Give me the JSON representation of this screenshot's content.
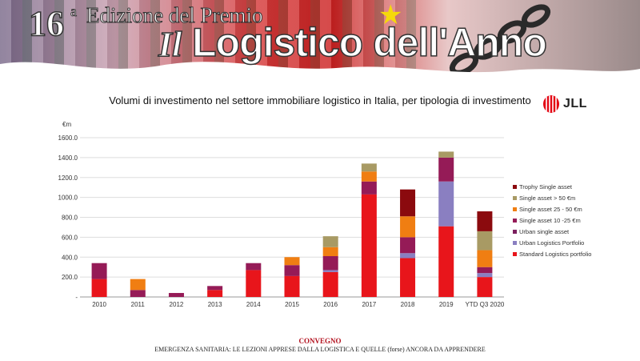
{
  "banner": {
    "edition_number": "16",
    "edition_superscript": "a",
    "edition_text": "Edizione del Premio",
    "title_prefix": "Il",
    "title_main": "Logistico dell'Anno"
  },
  "logo": {
    "text": "JLL"
  },
  "footer": {
    "line1": "CONVEGNO",
    "line2": "EMERGENZA SANITARIA: LE LEZIONI APPRESE DALLA LOGISTICA E QUELLE (forse) ANCORA DA APPRENDERE"
  },
  "chart_data": {
    "type": "bar",
    "stacked": true,
    "title": "Volumi di investimento nel settore immobiliare logistico in Italia, per tipologia di investimento",
    "ylabel": "€m",
    "ylim": [
      0,
      1600
    ],
    "yticks": [
      "-",
      "200.0",
      "400.0",
      "600.0",
      "800.0",
      "1000.0",
      "1200.0",
      "1400.0",
      "1600.0"
    ],
    "grid": true,
    "legend_position": "right",
    "categories": [
      "2010",
      "2011",
      "2012",
      "2013",
      "2014",
      "2015",
      "2016",
      "2017",
      "2018",
      "2019",
      "YTD Q3 2020"
    ],
    "series": [
      {
        "name": "Standard Logistics portfolio",
        "color": "#e8151b",
        "values": [
          180,
          0,
          0,
          70,
          270,
          210,
          250,
          1030,
          390,
          710,
          200
        ]
      },
      {
        "name": "Urban Logistics Portfolio",
        "color": "#8a7fc1",
        "values": [
          0,
          0,
          0,
          0,
          0,
          0,
          20,
          0,
          50,
          450,
          40
        ]
      },
      {
        "name": "Urban single asset",
        "color": "#7b1f5e",
        "values": [
          0,
          0,
          0,
          0,
          0,
          0,
          0,
          0,
          0,
          0,
          0
        ]
      },
      {
        "name": "Single asset 10 -25 €m",
        "color": "#951b57",
        "values": [
          160,
          70,
          40,
          40,
          70,
          110,
          140,
          130,
          160,
          240,
          60
        ]
      },
      {
        "name": "Single asset 25 - 50 €m",
        "color": "#f07e12",
        "values": [
          0,
          110,
          0,
          0,
          0,
          80,
          90,
          100,
          210,
          0,
          170
        ]
      },
      {
        "name": "Single asset > 50 €m",
        "color": "#a89a64",
        "values": [
          0,
          0,
          0,
          0,
          0,
          0,
          110,
          80,
          0,
          60,
          190
        ]
      },
      {
        "name": "Trophy Single asset",
        "color": "#8b0a0e",
        "values": [
          0,
          0,
          0,
          0,
          0,
          0,
          0,
          0,
          270,
          0,
          200
        ]
      }
    ]
  }
}
